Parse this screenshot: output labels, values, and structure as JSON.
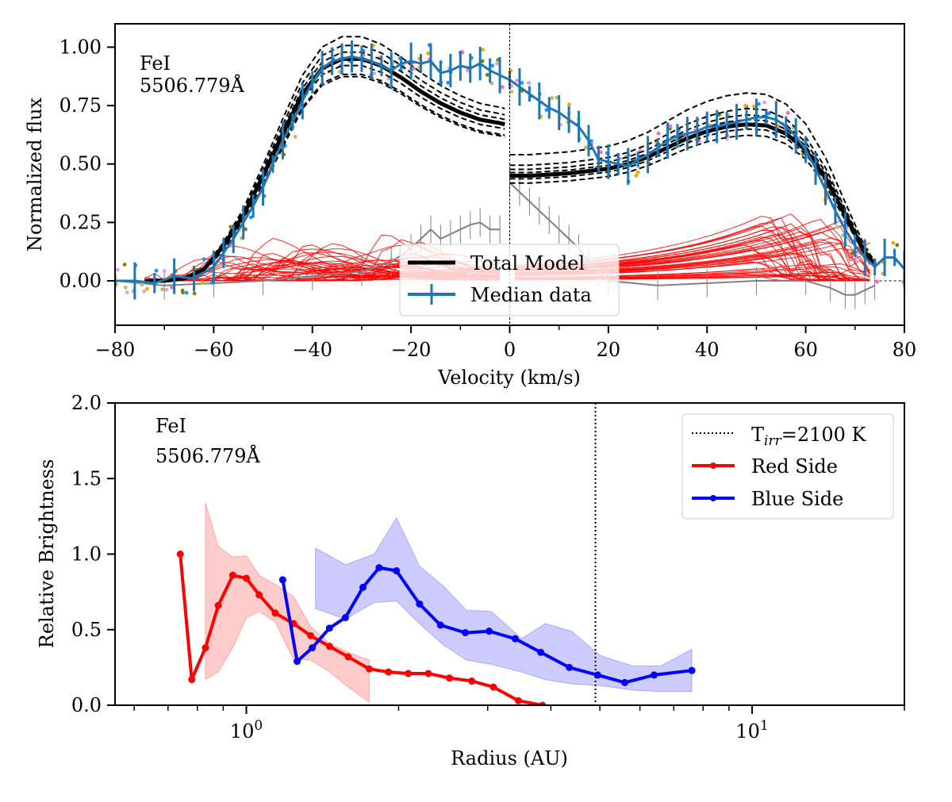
{
  "chart_data": [
    {
      "type": "line",
      "panel": "top",
      "xlabel": "Velocity (km/s)",
      "ylabel": "Normalized flux",
      "xlim": [
        -80,
        80
      ],
      "ylim": [
        -0.19,
        1.1
      ],
      "xticks": [
        -80,
        -60,
        -40,
        -20,
        0,
        20,
        40,
        60,
        80
      ],
      "xtick_labels": [
        "−80",
        "−60",
        "−40",
        "−20",
        "0",
        "20",
        "40",
        "60",
        "80"
      ],
      "yticks": [
        0.0,
        0.25,
        0.5,
        0.75,
        1.0
      ],
      "ytick_labels": [
        "0.00",
        "0.25",
        "0.50",
        "0.75",
        "1.00"
      ],
      "annotation": [
        "FeI",
        "5506.779Å"
      ],
      "legend": [
        "Total Model",
        "Median data"
      ],
      "series": [
        {
          "name": "Total Model",
          "color": "#000000",
          "x": [
            -74,
            -70,
            -66,
            -62,
            -58,
            -54,
            -50,
            -46,
            -42,
            -38,
            -34,
            -30,
            -26,
            -22,
            -18,
            -14,
            -10,
            -6,
            -2,
            -1
          ],
          "y": [
            0.0,
            0.0,
            0.01,
            0.05,
            0.15,
            0.28,
            0.45,
            0.63,
            0.8,
            0.91,
            0.95,
            0.95,
            0.92,
            0.87,
            0.81,
            0.76,
            0.72,
            0.69,
            0.675,
            0.67
          ]
        },
        {
          "name": "Total Model",
          "color": "#000000",
          "x": [
            0,
            4,
            8,
            12,
            16,
            20,
            24,
            28,
            32,
            36,
            40,
            44,
            48,
            52,
            56,
            60,
            64,
            68,
            72,
            74
          ],
          "y": [
            0.45,
            0.45,
            0.455,
            0.46,
            0.47,
            0.48,
            0.5,
            0.53,
            0.57,
            0.61,
            0.64,
            0.66,
            0.67,
            0.665,
            0.63,
            0.56,
            0.44,
            0.28,
            0.12,
            0.07
          ]
        },
        {
          "name": "Median data",
          "color": "#1f77b4",
          "x": [
            -80,
            -76,
            -72,
            -68,
            -64,
            -60,
            -58,
            -56,
            -54,
            -52,
            -50,
            -48,
            -46,
            -44,
            -42,
            -40,
            -38,
            -36,
            -34,
            -32,
            -30,
            -28,
            -26,
            -24,
            -22,
            -20,
            -18,
            -16,
            -14,
            -12,
            -10,
            -8,
            -6,
            -4,
            -2,
            0,
            2,
            4,
            6,
            8,
            10,
            12,
            14,
            16,
            18,
            20,
            22,
            24,
            26,
            28,
            30,
            32,
            34,
            36,
            38,
            40,
            42,
            44,
            46,
            48,
            50,
            52,
            54,
            56,
            58,
            60,
            62,
            64,
            66,
            68,
            70,
            72,
            74,
            76,
            78,
            80
          ],
          "y": [
            0.0,
            0.0,
            -0.01,
            0.02,
            0.01,
            0.06,
            0.12,
            0.18,
            0.25,
            0.32,
            0.4,
            0.5,
            0.6,
            0.68,
            0.77,
            0.85,
            0.91,
            0.94,
            0.95,
            0.96,
            0.95,
            0.94,
            0.92,
            0.9,
            0.93,
            0.94,
            0.93,
            0.94,
            0.89,
            0.9,
            0.92,
            0.91,
            0.93,
            0.9,
            0.88,
            0.86,
            0.83,
            0.8,
            0.77,
            0.74,
            0.72,
            0.69,
            0.66,
            0.6,
            0.52,
            0.51,
            0.5,
            0.49,
            0.52,
            0.54,
            0.57,
            0.6,
            0.62,
            0.63,
            0.64,
            0.66,
            0.66,
            0.67,
            0.68,
            0.69,
            0.7,
            0.7,
            0.69,
            0.66,
            0.62,
            0.56,
            0.48,
            0.39,
            0.3,
            0.22,
            0.15,
            0.1,
            0.06,
            0.1,
            0.1,
            0.05
          ]
        },
        {
          "name": "Residual (grey)",
          "color": "#808080",
          "x": [
            -80,
            -70,
            -60,
            -50,
            -40,
            -30,
            -24,
            -20,
            -18,
            -16,
            -14,
            -12,
            -10,
            -8,
            -6,
            -4,
            -2,
            0,
            2,
            4,
            6,
            8,
            10,
            12,
            14,
            16,
            18,
            20,
            30,
            40,
            50,
            60,
            65,
            68,
            70,
            72,
            74
          ],
          "y": [
            0.0,
            -0.02,
            -0.01,
            0.0,
            0.02,
            0.04,
            0.08,
            0.14,
            0.18,
            0.22,
            0.18,
            0.2,
            0.22,
            0.24,
            0.25,
            0.22,
            0.22,
            0.42,
            0.38,
            0.34,
            0.3,
            0.26,
            0.22,
            0.18,
            0.14,
            0.08,
            0.04,
            0.0,
            -0.02,
            -0.01,
            0.0,
            0.0,
            -0.03,
            -0.06,
            -0.06,
            -0.04,
            -0.02
          ]
        }
      ],
      "model_curves_color": "#ff0000",
      "model_variants_style": "dashed black",
      "vertical_line_x": 0
    },
    {
      "type": "line",
      "panel": "bottom",
      "xscale": "log",
      "xlabel": "Radius (AU)",
      "ylabel": "Relative Brightness",
      "xlim": [
        0.55,
        20
      ],
      "ylim": [
        0.0,
        2.0
      ],
      "yticks": [
        0.0,
        0.5,
        1.0,
        1.5,
        2.0
      ],
      "ytick_labels": [
        "0.0",
        "0.5",
        "1.0",
        "1.5",
        "2.0"
      ],
      "xticks_major": [
        1,
        10
      ],
      "annotation": [
        "FeI",
        "5506.779Å"
      ],
      "vline": {
        "x": 4.9,
        "label": "T_irr=2100 K"
      },
      "legend": [
        "T",
        "irr",
        "=2100 K",
        "Red Side",
        "Blue Side"
      ],
      "series": [
        {
          "name": "Red Side",
          "color": "#ff0000",
          "x": [
            0.74,
            0.78,
            0.83,
            0.88,
            0.94,
            1.0,
            1.06,
            1.14,
            1.24,
            1.34,
            1.46,
            1.59,
            1.75,
            1.91,
            2.09,
            2.29,
            2.52,
            2.79,
            3.08,
            3.45,
            3.85
          ],
          "y": [
            1.0,
            0.17,
            0.38,
            0.66,
            0.86,
            0.84,
            0.73,
            0.61,
            0.54,
            0.46,
            0.39,
            0.32,
            0.24,
            0.22,
            0.21,
            0.21,
            0.18,
            0.16,
            0.12,
            0.03,
            0.0
          ],
          "band_x": [
            0.83,
            0.88,
            0.94,
            1.0,
            1.06,
            1.14,
            1.24,
            1.34,
            1.46,
            1.59,
            1.75
          ],
          "band_low": [
            0.17,
            0.22,
            0.38,
            0.58,
            0.62,
            0.55,
            0.3,
            0.3,
            0.22,
            0.12,
            0.02
          ],
          "band_high": [
            1.34,
            1.05,
            0.98,
            0.99,
            0.86,
            0.8,
            0.72,
            0.52,
            0.41,
            0.35,
            0.3
          ]
        },
        {
          "name": "Blue Side",
          "color": "#0000ff",
          "x": [
            1.18,
            1.26,
            1.35,
            1.46,
            1.57,
            1.7,
            1.83,
            1.98,
            2.2,
            2.42,
            2.71,
            3.02,
            3.4,
            3.82,
            4.35,
            4.95,
            5.6,
            6.4,
            7.6
          ],
          "y": [
            0.83,
            0.29,
            0.38,
            0.51,
            0.58,
            0.78,
            0.91,
            0.89,
            0.67,
            0.53,
            0.48,
            0.49,
            0.44,
            0.35,
            0.25,
            0.2,
            0.15,
            0.2,
            0.23
          ],
          "band_x": [
            1.37,
            1.57,
            1.79,
            1.98,
            2.2,
            2.45,
            2.72,
            3.05,
            3.5,
            3.9,
            4.4,
            5.0,
            5.8,
            6.6,
            7.6
          ],
          "band_low": [
            0.64,
            0.57,
            0.68,
            0.69,
            0.54,
            0.4,
            0.3,
            0.27,
            0.22,
            0.17,
            0.14,
            0.13,
            0.1,
            0.09,
            0.09
          ],
          "band_high": [
            1.04,
            0.93,
            1.0,
            1.24,
            0.92,
            0.79,
            0.63,
            0.62,
            0.44,
            0.54,
            0.49,
            0.33,
            0.26,
            0.26,
            0.37
          ]
        }
      ]
    }
  ]
}
